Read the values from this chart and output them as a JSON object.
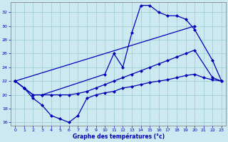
{
  "title": "Graphe des températures (°c)",
  "bg_color": "#cce8f0",
  "line_color": "#0000bb",
  "grid_color": "#99cccc",
  "spine_color": "#777777",
  "xlim": [
    -0.5,
    23.5
  ],
  "ylim": [
    15.5,
    33.5
  ],
  "yticks": [
    16,
    18,
    20,
    22,
    24,
    26,
    28,
    30,
    32
  ],
  "xticks": [
    0,
    1,
    2,
    3,
    4,
    5,
    6,
    7,
    8,
    9,
    10,
    11,
    12,
    13,
    14,
    15,
    16,
    17,
    18,
    19,
    20,
    21,
    22,
    23
  ],
  "series1_x": [
    0,
    1,
    2,
    3,
    4,
    5,
    6,
    7,
    8,
    9,
    10,
    11,
    12,
    13,
    14,
    15,
    16,
    17,
    18,
    19,
    20,
    21,
    22,
    23
  ],
  "series1_y": [
    22,
    21,
    19.5,
    18.5,
    17,
    16.5,
    16,
    17,
    19.5,
    20,
    20.3,
    20.5,
    21,
    21.2,
    21.5,
    21.8,
    22,
    22.2,
    22.5,
    22.8,
    23,
    22.5,
    22.2,
    22
  ],
  "series2_x": [
    0,
    1,
    2,
    3,
    10,
    11,
    12,
    13,
    14,
    15,
    16,
    17,
    18,
    19,
    20,
    22,
    23
  ],
  "series2_y": [
    22,
    21,
    20,
    20,
    23,
    26,
    24,
    29,
    33,
    33,
    32,
    31.5,
    31.5,
    31,
    29.5,
    25,
    22
  ],
  "series3_x": [
    0,
    20
  ],
  "series3_y": [
    22,
    30
  ],
  "series4_x": [
    0,
    1,
    2,
    3,
    4,
    5,
    6,
    7,
    8,
    9,
    10,
    11,
    12,
    13,
    14,
    15,
    16,
    17,
    18,
    19,
    20,
    22,
    23
  ],
  "series4_y": [
    22,
    21,
    20,
    20,
    20,
    20,
    20,
    20.2,
    20.5,
    21,
    21.5,
    22,
    22.5,
    23,
    23.5,
    24,
    24.5,
    25,
    25.5,
    26,
    26.5,
    22.5,
    22
  ]
}
